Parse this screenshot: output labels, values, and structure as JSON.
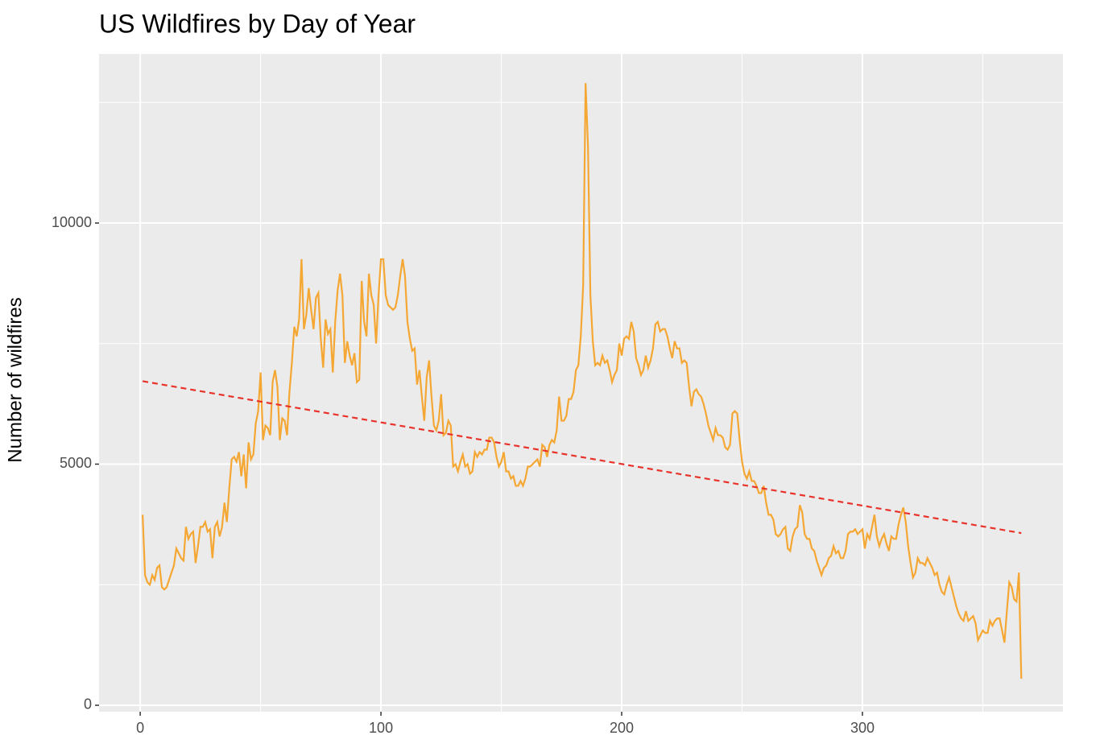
{
  "chart_data": {
    "type": "line",
    "title": "US Wildfires by Day of Year",
    "y_label": "Number of wildfires",
    "xlim": [
      -17.1,
      383.3
    ],
    "ylim": [
      -134,
      13506
    ],
    "xticks": [
      0,
      100,
      200,
      300
    ],
    "yticks": [
      0,
      5000,
      10000
    ],
    "xminor": [
      50,
      150,
      250,
      350
    ],
    "yminor": [
      2500,
      7500,
      12500
    ],
    "grid": true,
    "series": [
      {
        "color": "#f5a733",
        "linestyle": "solid",
        "x": [
          1,
          2,
          3,
          4,
          5,
          6,
          7,
          8,
          9,
          10,
          11,
          12,
          13,
          14,
          15,
          16,
          17,
          18,
          19,
          20,
          21,
          22,
          23,
          24,
          25,
          26,
          27,
          28,
          29,
          30,
          31,
          32,
          33,
          34,
          35,
          36,
          37,
          38,
          39,
          40,
          41,
          42,
          43,
          44,
          45,
          46,
          47,
          48,
          49,
          50,
          51,
          52,
          53,
          54,
          55,
          56,
          57,
          58,
          59,
          60,
          61,
          62,
          63,
          64,
          65,
          66,
          67,
          68,
          69,
          70,
          71,
          72,
          73,
          74,
          75,
          76,
          77,
          78,
          79,
          80,
          81,
          82,
          83,
          84,
          85,
          86,
          87,
          88,
          89,
          90,
          91,
          92,
          93,
          94,
          95,
          96,
          97,
          98,
          99,
          100,
          101,
          102,
          103,
          104,
          105,
          106,
          107,
          108,
          109,
          110,
          111,
          112,
          113,
          114,
          115,
          116,
          117,
          118,
          119,
          120,
          121,
          122,
          123,
          124,
          125,
          126,
          127,
          128,
          129,
          130,
          131,
          132,
          133,
          134,
          135,
          136,
          137,
          138,
          139,
          140,
          141,
          142,
          143,
          144,
          145,
          146,
          147,
          148,
          149,
          150,
          151,
          152,
          153,
          154,
          155,
          156,
          157,
          158,
          159,
          160,
          161,
          162,
          163,
          164,
          165,
          166,
          167,
          168,
          169,
          170,
          171,
          172,
          173,
          174,
          175,
          176,
          177,
          178,
          179,
          180,
          181,
          182,
          183,
          184,
          185,
          186,
          187,
          188,
          189,
          190,
          191,
          192,
          193,
          194,
          195,
          196,
          197,
          198,
          199,
          200,
          201,
          202,
          203,
          204,
          205,
          206,
          207,
          208,
          209,
          210,
          211,
          212,
          213,
          214,
          215,
          216,
          217,
          218,
          219,
          220,
          221,
          222,
          223,
          224,
          225,
          226,
          227,
          228,
          229,
          230,
          231,
          232,
          233,
          234,
          235,
          236,
          237,
          238,
          239,
          240,
          241,
          242,
          243,
          244,
          245,
          246,
          247,
          248,
          249,
          250,
          251,
          252,
          253,
          254,
          255,
          256,
          257,
          258,
          259,
          260,
          261,
          262,
          263,
          264,
          265,
          266,
          267,
          268,
          269,
          270,
          271,
          272,
          273,
          274,
          275,
          276,
          277,
          278,
          279,
          280,
          281,
          282,
          283,
          284,
          285,
          286,
          287,
          288,
          289,
          290,
          291,
          292,
          293,
          294,
          295,
          296,
          297,
          298,
          299,
          300,
          301,
          302,
          303,
          304,
          305,
          306,
          307,
          308,
          309,
          310,
          311,
          312,
          313,
          314,
          315,
          316,
          317,
          318,
          319,
          320,
          321,
          322,
          323,
          324,
          325,
          326,
          327,
          328,
          329,
          330,
          331,
          332,
          333,
          334,
          335,
          336,
          337,
          338,
          339,
          340,
          341,
          342,
          343,
          344,
          345,
          346,
          347,
          348,
          349,
          350,
          351,
          352,
          353,
          354,
          355,
          356,
          357,
          358,
          359,
          360,
          361,
          362,
          363,
          364,
          365,
          366
        ],
        "values": [
          3950,
          2700,
          2550,
          2500,
          2700,
          2600,
          2850,
          2900,
          2450,
          2400,
          2450,
          2600,
          2750,
          2900,
          3250,
          3150,
          3050,
          3000,
          3700,
          3450,
          3550,
          3600,
          2950,
          3300,
          3700,
          3700,
          3800,
          3600,
          3650,
          3050,
          3700,
          3800,
          3500,
          3700,
          4200,
          3800,
          4500,
          5100,
          5150,
          5050,
          5250,
          4750,
          5200,
          4500,
          5450,
          5100,
          5200,
          5850,
          6100,
          6900,
          5500,
          5800,
          5750,
          5600,
          6700,
          6950,
          6600,
          5500,
          5950,
          5900,
          5600,
          6500,
          7100,
          7850,
          7650,
          8000,
          9250,
          7800,
          8100,
          8650,
          8200,
          7800,
          8450,
          8550,
          7600,
          7000,
          8000,
          7700,
          7800,
          6900,
          7950,
          8600,
          8950,
          8500,
          7100,
          7550,
          7250,
          7050,
          7300,
          6700,
          6750,
          8800,
          7950,
          7650,
          8950,
          8500,
          8300,
          7500,
          8500,
          9250,
          9250,
          8500,
          8300,
          8250,
          8200,
          8250,
          8500,
          8900,
          9250,
          8900,
          7950,
          7600,
          7350,
          7400,
          6650,
          6950,
          6400,
          5900,
          6800,
          7150,
          6400,
          5800,
          5700,
          5900,
          6450,
          5600,
          5650,
          5900,
          5800,
          4950,
          5000,
          4850,
          5050,
          5200,
          4950,
          5000,
          4800,
          4850,
          5250,
          5150,
          5250,
          5200,
          5300,
          5300,
          5550,
          5550,
          5450,
          5150,
          4950,
          5050,
          5250,
          4850,
          4850,
          4700,
          4750,
          4550,
          4550,
          4650,
          4550,
          4700,
          4950,
          4950,
          5000,
          5050,
          5100,
          4950,
          5400,
          5350,
          5150,
          5400,
          5500,
          5450,
          5700,
          6400,
          5900,
          5900,
          6000,
          6350,
          6350,
          6500,
          6950,
          7050,
          7650,
          8700,
          12900,
          11600,
          8500,
          7550,
          7050,
          7100,
          7050,
          7250,
          7100,
          7150,
          6950,
          6700,
          6850,
          6950,
          7500,
          7250,
          7600,
          7650,
          7600,
          7950,
          7750,
          7200,
          7050,
          6850,
          6950,
          7250,
          7000,
          7150,
          7400,
          7900,
          7950,
          7750,
          7800,
          7800,
          7650,
          7400,
          7200,
          7550,
          7400,
          7400,
          7100,
          7150,
          7100,
          6600,
          6200,
          6500,
          6550,
          6450,
          6400,
          6250,
          6050,
          5800,
          5650,
          5500,
          5750,
          5600,
          5600,
          5550,
          5350,
          5300,
          5400,
          6050,
          6100,
          6050,
          5500,
          5050,
          4800,
          4700,
          4850,
          4650,
          4650,
          4550,
          4400,
          4400,
          4550,
          4200,
          3950,
          3950,
          3850,
          3550,
          3500,
          3550,
          3650,
          3700,
          3250,
          3200,
          3500,
          3650,
          3700,
          4150,
          4000,
          3550,
          3450,
          3450,
          3250,
          3200,
          3000,
          2850,
          2700,
          2850,
          2900,
          3050,
          3100,
          3300,
          3150,
          3200,
          3050,
          3050,
          3200,
          3550,
          3600,
          3600,
          3650,
          3550,
          3600,
          3650,
          3250,
          3550,
          3450,
          3700,
          3950,
          3500,
          3300,
          3450,
          3550,
          3350,
          3200,
          3500,
          3450,
          3450,
          3750,
          3950,
          4100,
          3800,
          3300,
          2950,
          2650,
          2750,
          3050,
          2950,
          2950,
          2900,
          3050,
          2950,
          2850,
          2700,
          2750,
          2500,
          2350,
          2300,
          2500,
          2650,
          2450,
          2250,
          2050,
          1900,
          1800,
          1750,
          1950,
          1750,
          1800,
          1850,
          1700,
          1350,
          1450,
          1550,
          1500,
          1500,
          1750,
          1650,
          1750,
          1800,
          1800,
          1550,
          1300,
          1950,
          2550,
          2450,
          2200,
          2150,
          2750,
          550
        ]
      },
      {
        "color": "#e8322a",
        "linestyle": "dashed",
        "x": [
          1,
          366
        ],
        "values": [
          6720,
          3570
        ]
      }
    ]
  }
}
